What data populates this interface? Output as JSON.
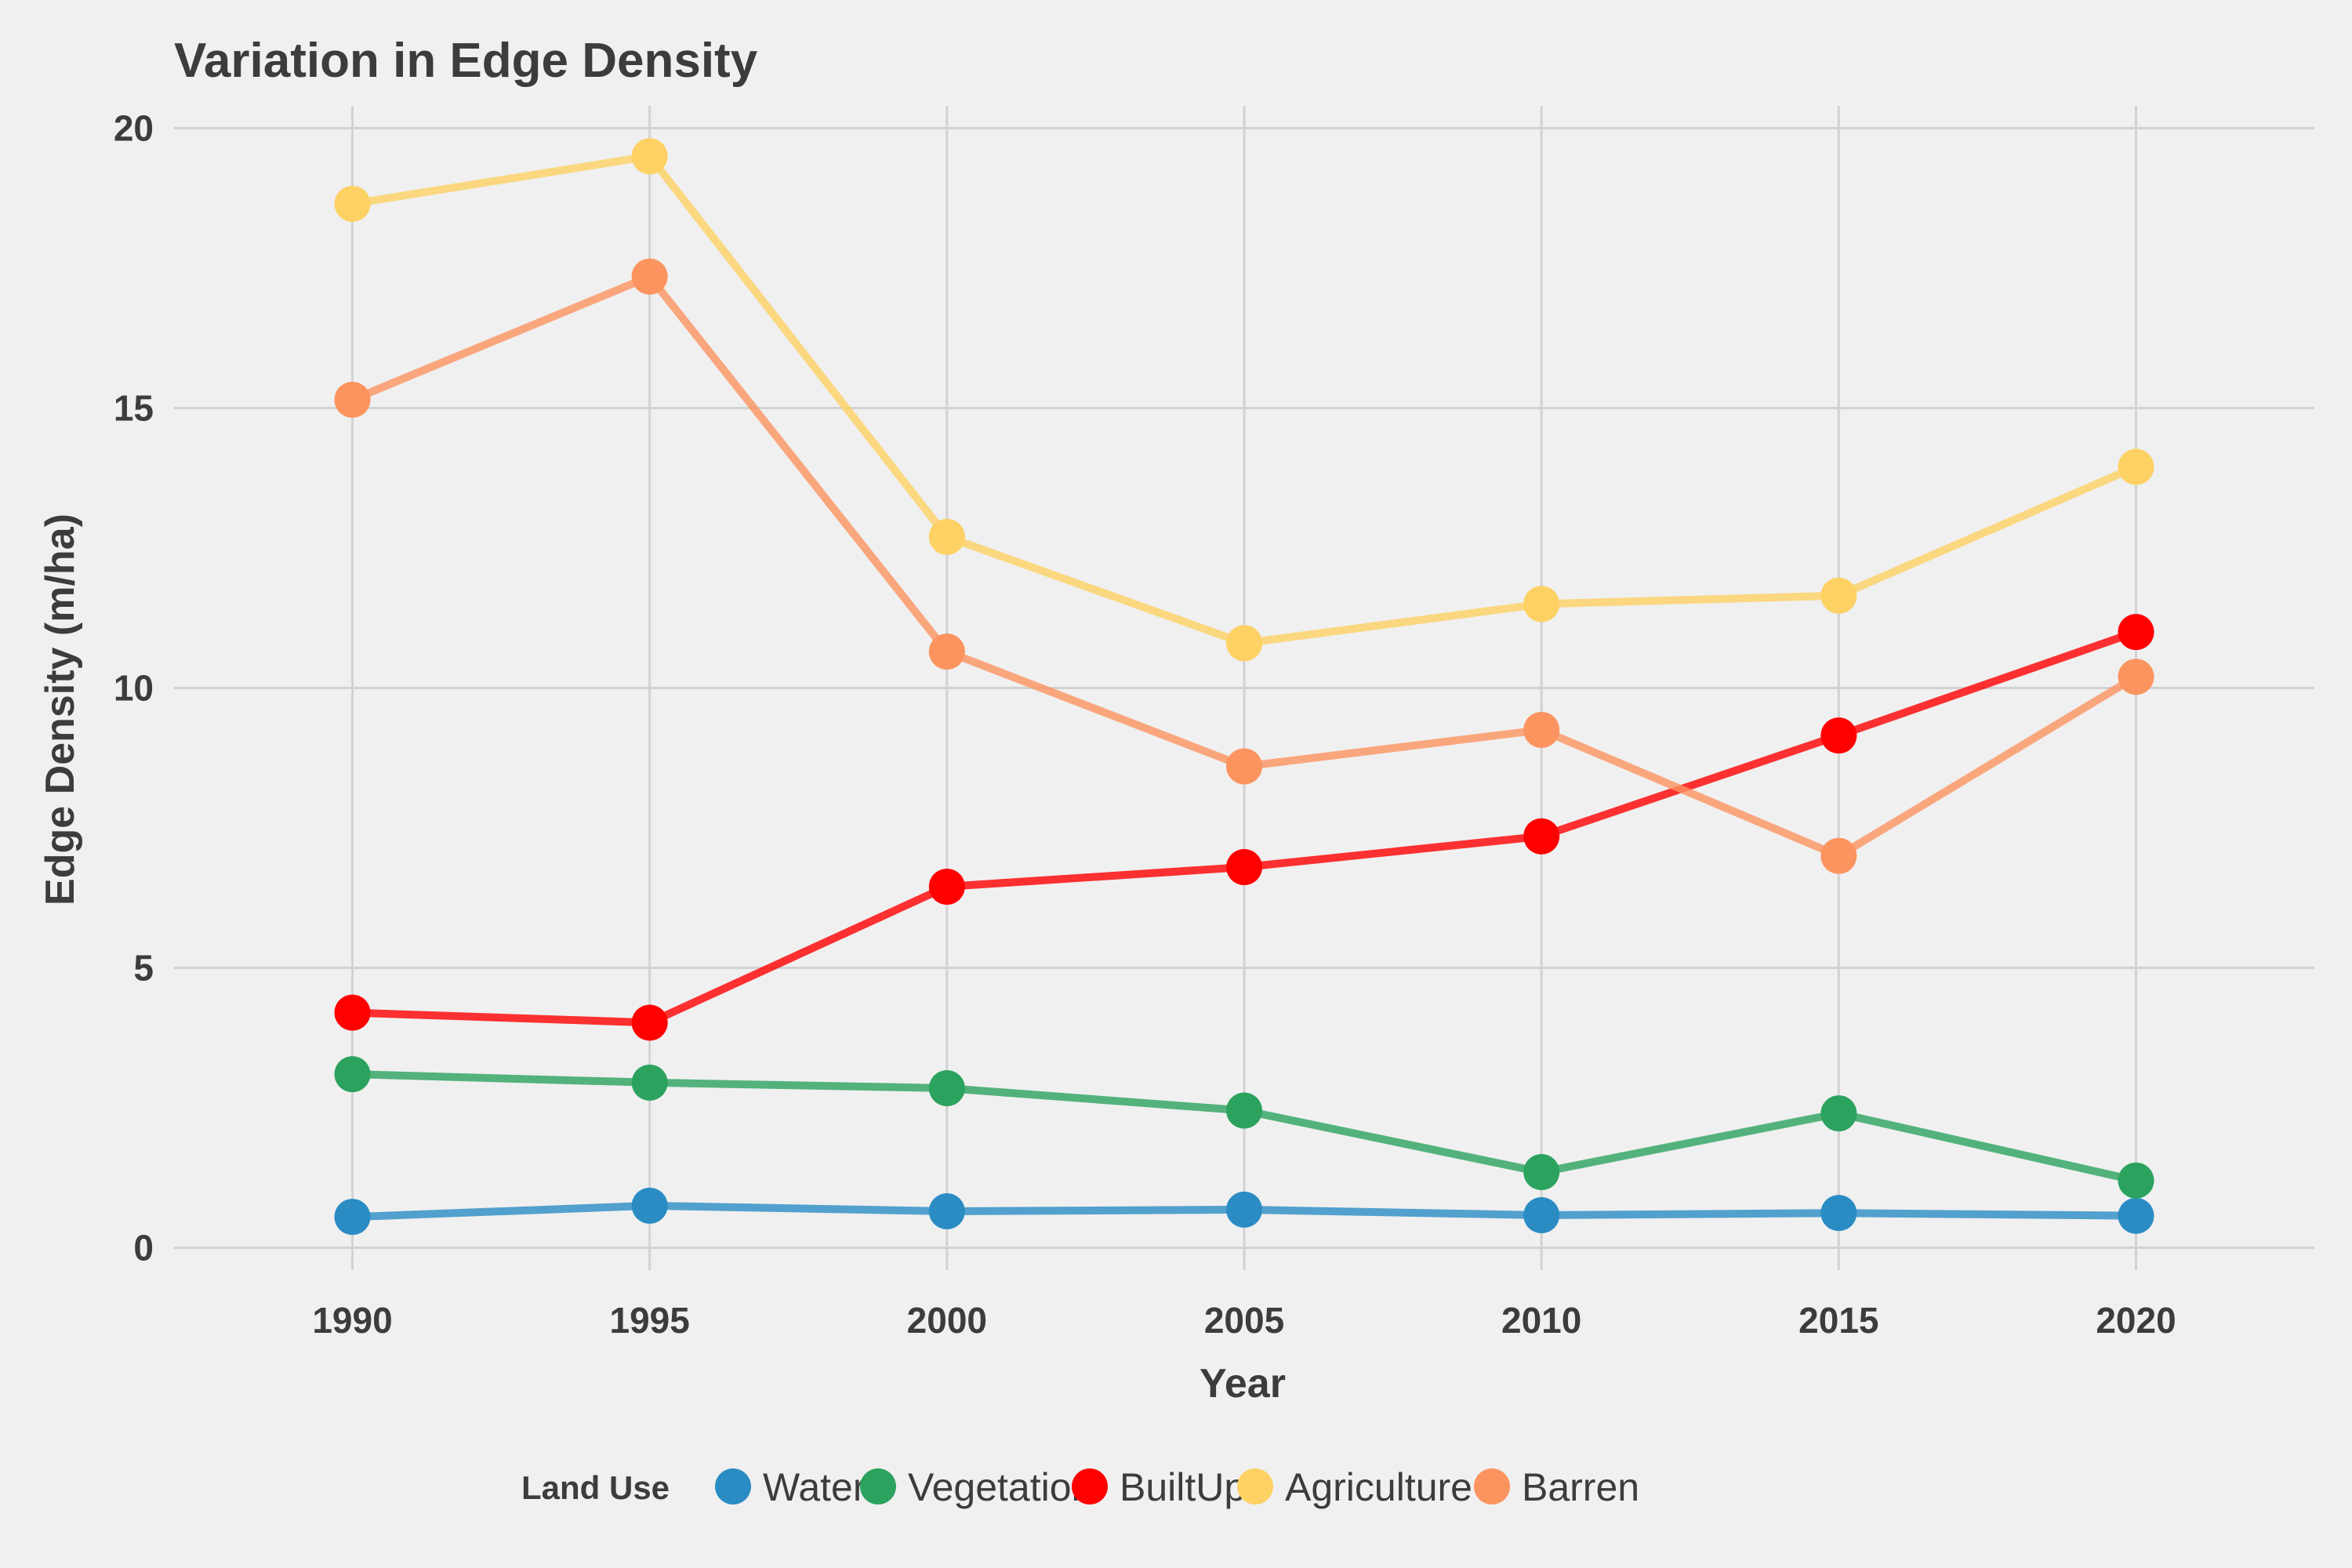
{
  "chart_data": {
    "type": "line",
    "title": "Variation in Edge Density",
    "xlabel": "Year",
    "ylabel": "Edge Density (m/ha)",
    "x": [
      1990,
      1995,
      2000,
      2005,
      2010,
      2015,
      2020
    ],
    "x_ticks": [
      "1990",
      "1995",
      "2000",
      "2005",
      "2010",
      "2015",
      "2020"
    ],
    "y_ticks": [
      "0",
      "5",
      "10",
      "15",
      "20"
    ],
    "xlim": [
      1987,
      2023
    ],
    "ylim": [
      -0.4,
      20.4
    ],
    "grid": true,
    "legend": {
      "title": "Land Use",
      "position": "bottom"
    },
    "series": [
      {
        "name": "Water",
        "color": "#2b8cc4",
        "values": [
          0.55,
          0.75,
          0.65,
          0.68,
          0.58,
          0.62,
          0.57
        ]
      },
      {
        "name": "Vegetation",
        "color": "#2ca25f",
        "values": [
          3.1,
          2.95,
          2.85,
          2.45,
          1.35,
          2.4,
          1.2
        ]
      },
      {
        "name": "BuiltUp",
        "color": "#ff0000",
        "values": [
          4.2,
          4.02,
          6.45,
          6.8,
          7.35,
          9.15,
          11.0
        ]
      },
      {
        "name": "Agriculture",
        "color": "#fed164",
        "values": [
          18.65,
          19.5,
          12.7,
          10.8,
          11.5,
          11.65,
          13.95
        ]
      },
      {
        "name": "Barren",
        "color": "#fc9460",
        "values": [
          15.15,
          17.35,
          10.65,
          8.6,
          9.25,
          7.0,
          10.2
        ]
      }
    ]
  }
}
